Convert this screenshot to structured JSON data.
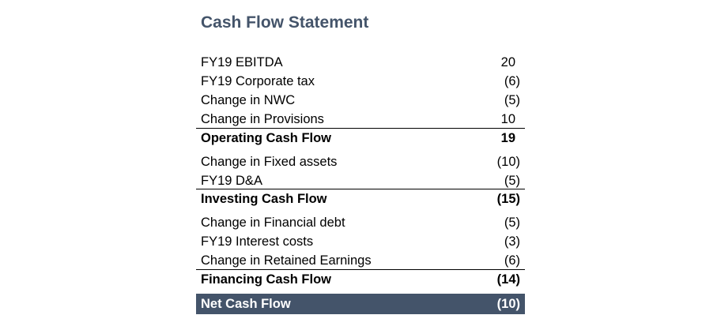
{
  "title": "Cash Flow Statement",
  "operating": {
    "rows": [
      {
        "label": "FY19 EBITDA",
        "value": "20"
      },
      {
        "label": "FY19 Corporate tax",
        "value": "(6)"
      },
      {
        "label": "Change in NWC",
        "value": "(5)"
      },
      {
        "label": "Change in Provisions",
        "value": "10"
      }
    ],
    "total": {
      "label": "Operating Cash Flow",
      "value": "19"
    }
  },
  "investing": {
    "rows": [
      {
        "label": "Change in Fixed assets",
        "value": "(10)"
      },
      {
        "label": "FY19 D&A",
        "value": "(5)"
      }
    ],
    "total": {
      "label": "Investing Cash Flow",
      "value": "(15)"
    }
  },
  "financing": {
    "rows": [
      {
        "label": "Change in Financial debt",
        "value": "(5)"
      },
      {
        "label": "FY19 Interest costs",
        "value": "(3)"
      },
      {
        "label": "Change in Retained Earnings",
        "value": "(6)"
      }
    ],
    "total": {
      "label": "Financing Cash Flow",
      "value": "(14)"
    }
  },
  "net": {
    "label": "Net Cash Flow",
    "value": "(10)"
  },
  "colors": {
    "title": "#44546a",
    "net_background": "#44546a",
    "net_text": "#ffffff"
  }
}
